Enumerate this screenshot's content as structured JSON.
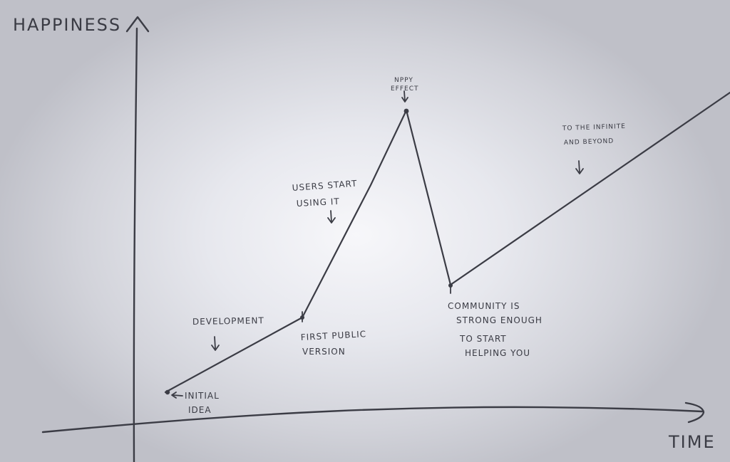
{
  "axes": {
    "y_label": "HAPPINESS",
    "x_label": "TIME"
  },
  "annotations": {
    "development": "DEVELOPMENT",
    "initial_idea": [
      "INITIAL",
      "IDEA"
    ],
    "first_public_version": [
      "FIRST PUBLIC",
      "VERSION"
    ],
    "users_start": [
      "USERS START",
      "USING IT"
    ],
    "peak": [
      "NPPY",
      "EFFECT"
    ],
    "community": [
      "COMMUNITY IS",
      "STRONG ENOUGH",
      "TO START",
      "HELPING YOU"
    ],
    "infinity": [
      "TO THE INFINITE",
      "AND BEYOND"
    ]
  },
  "colors": {
    "ink": "#3b3c45",
    "paper_center": "#f7f7fa",
    "paper_edge": "#bfc0c8"
  }
}
